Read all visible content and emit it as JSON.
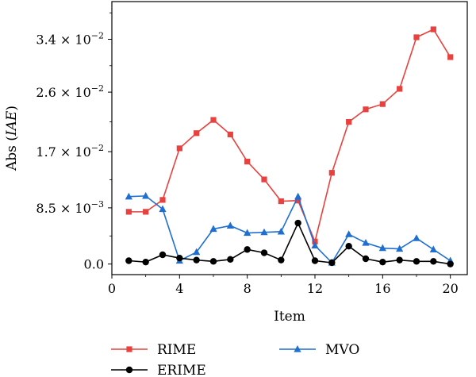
{
  "chart_data": {
    "type": "line",
    "xlabel": "Item",
    "ylabel": "Abs (IAE)",
    "ylabel_main": "Abs (",
    "ylabel_italic": "IAE",
    "ylabel_close": ")",
    "xlim": [
      0,
      21
    ],
    "ylim": [
      -0.0016,
      0.0397
    ],
    "x_ticks": [
      0,
      4,
      8,
      12,
      16,
      20
    ],
    "x_tick_labels": [
      "0",
      "4",
      "8",
      "12",
      "16",
      "20"
    ],
    "y_ticks": [
      0,
      0.0085,
      0.017,
      0.026,
      0.034
    ],
    "y_tick_labels": [
      {
        "mant": "0.0",
        "exp": ""
      },
      {
        "mant": "8.5 × 10",
        "exp": "−3"
      },
      {
        "mant": "1.7 × 10",
        "exp": "−2"
      },
      {
        "mant": "2.6 × 10",
        "exp": "−2"
      },
      {
        "mant": "3.4 × 10",
        "exp": "−2"
      }
    ],
    "grid": false,
    "legend_position": "bottom",
    "x": [
      1,
      2,
      3,
      4,
      5,
      6,
      7,
      8,
      9,
      10,
      11,
      12,
      13,
      14,
      15,
      16,
      17,
      18,
      19,
      20
    ],
    "series": [
      {
        "name": "RIME",
        "color": "#e8413e",
        "marker": "square",
        "values": [
          0.0079,
          0.0079,
          0.0097,
          0.0175,
          0.0198,
          0.0218,
          0.0196,
          0.0155,
          0.0128,
          0.0095,
          0.0096,
          0.0034,
          0.0138,
          0.0215,
          0.0234,
          0.0242,
          0.0265,
          0.0343,
          0.0355,
          0.0313
        ]
      },
      {
        "name": "ERIME",
        "color": "#000000",
        "marker": "circle",
        "values": [
          0.0005,
          0.0003,
          0.0014,
          0.0009,
          0.0006,
          0.0004,
          0.0007,
          0.0022,
          0.0017,
          0.0006,
          0.0062,
          0.0005,
          0.0002,
          0.0027,
          0.0008,
          0.0003,
          0.0006,
          0.0004,
          0.0004,
          0.0
        ]
      },
      {
        "name": "MVO",
        "color": "#1f6fd1",
        "marker": "triangle",
        "values": [
          0.0102,
          0.0103,
          0.0083,
          0.0005,
          0.0018,
          0.0053,
          0.0058,
          0.0047,
          0.0048,
          0.0049,
          0.0102,
          0.0028,
          0.0002,
          0.0045,
          0.0032,
          0.0024,
          0.0023,
          0.0039,
          0.0022,
          0.0005
        ]
      }
    ]
  }
}
